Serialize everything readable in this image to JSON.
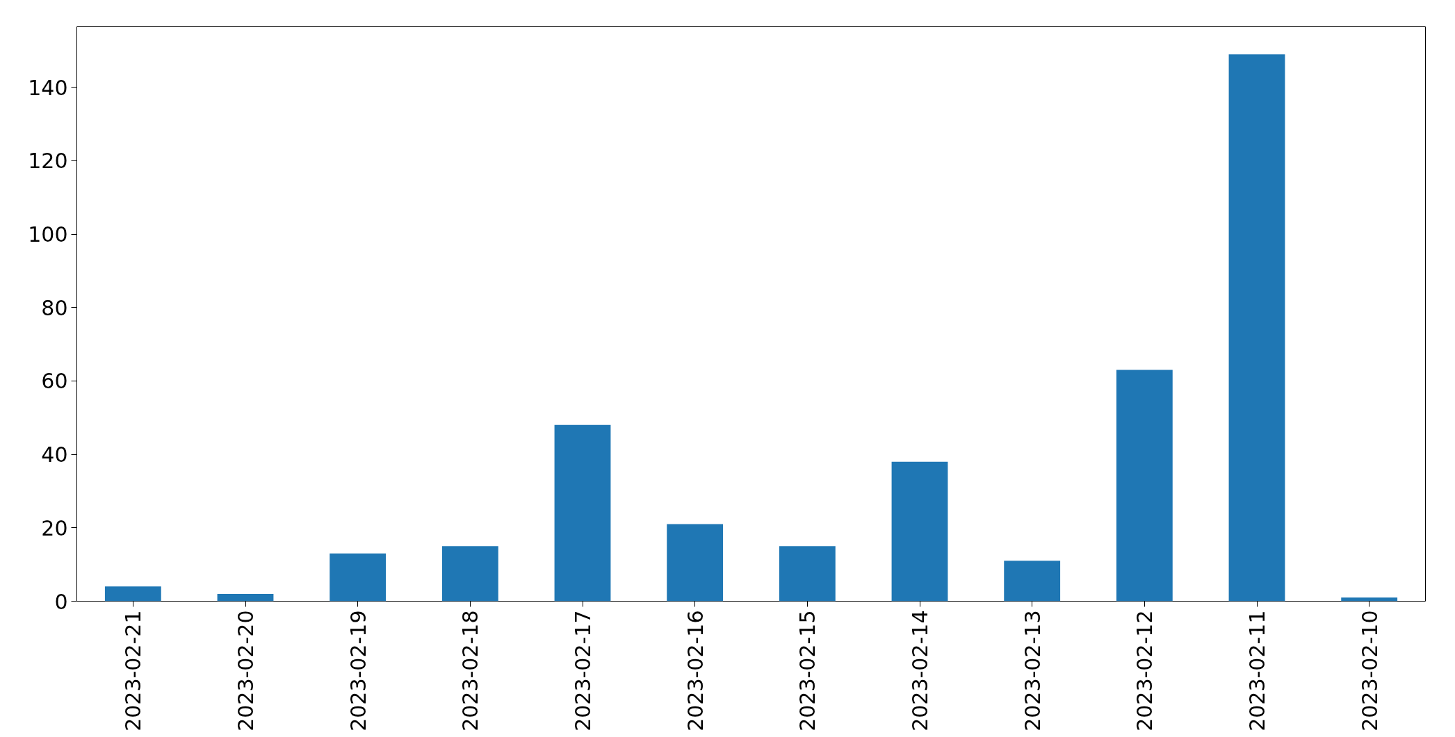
{
  "chart_data": {
    "type": "bar",
    "categories": [
      "2023-02-21",
      "2023-02-20",
      "2023-02-19",
      "2023-02-18",
      "2023-02-17",
      "2023-02-16",
      "2023-02-15",
      "2023-02-14",
      "2023-02-13",
      "2023-02-12",
      "2023-02-11",
      "2023-02-10"
    ],
    "values": [
      4,
      2,
      13,
      15,
      48,
      21,
      15,
      38,
      11,
      63,
      149,
      1
    ],
    "color": "#1f77b4",
    "ylim": [
      0,
      156.5
    ],
    "yticks": [
      0,
      20,
      40,
      60,
      80,
      100,
      120,
      140
    ],
    "grid": false
  }
}
